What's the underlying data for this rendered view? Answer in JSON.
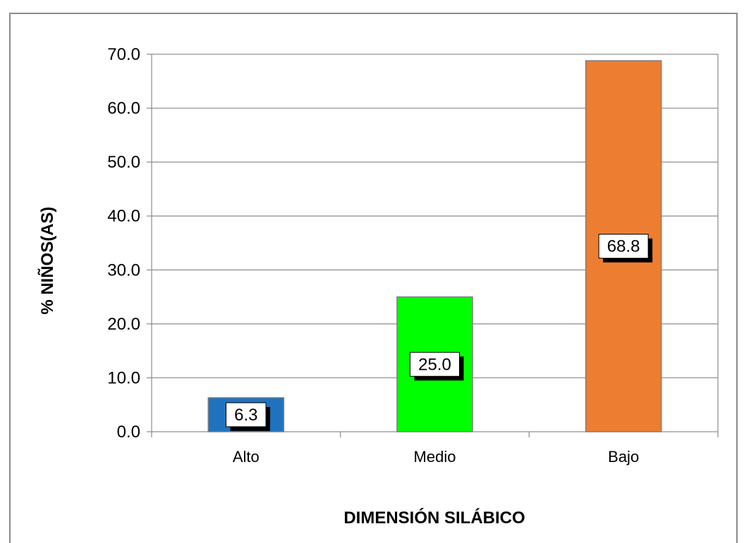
{
  "chart_data": {
    "type": "bar",
    "title": "",
    "xlabel": "DIMENSIÓN SILÁBICO",
    "ylabel": "% NIÑOS(AS)",
    "categories": [
      "Alto",
      "Medio",
      "Bajo"
    ],
    "values": [
      6.3,
      25.0,
      68.8
    ],
    "data_labels": [
      "6.3",
      "25.0",
      "68.8"
    ],
    "bar_colors": [
      "#1f73be",
      "#00ff00",
      "#ed7d31"
    ],
    "ylim": [
      0,
      70
    ],
    "yticks": [
      "0.0",
      "10.0",
      "20.0",
      "30.0",
      "40.0",
      "50.0",
      "60.0",
      "70.0"
    ],
    "grid": true,
    "legend": "none"
  }
}
